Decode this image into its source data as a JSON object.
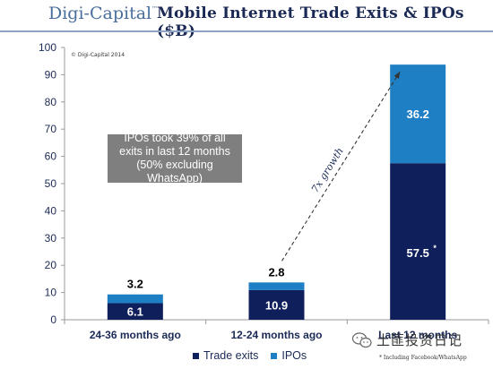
{
  "header": {
    "brand": "Digi-Capital",
    "brand_tm": "™",
    "title": "Mobile Internet Trade Exits & IPOs ($B)"
  },
  "copyright": "© Digi-Capital 2014",
  "note": "IPOs took 39% of all exits in last 12 months (50% excluding WhatsApp)",
  "growth_label": "7x growth",
  "footnote": "* Including Facebook/WhatsApp",
  "watermark": "土匪投资日记",
  "chart_data": {
    "type": "bar",
    "stacked": true,
    "categories": [
      "24-36 months ago",
      "12-24 months ago",
      "Last 12 months"
    ],
    "series": [
      {
        "name": "Trade exits",
        "values": [
          6.1,
          10.9,
          57.5
        ],
        "labels": [
          "6.1",
          "10.9",
          "57.5"
        ],
        "color": "#0e1f5b"
      },
      {
        "name": "IPOs",
        "values": [
          3.2,
          2.8,
          36.2
        ],
        "labels": [
          "3.2",
          "2.8",
          "36.2"
        ],
        "color": "#1f7fc4"
      }
    ],
    "starred_value": "*",
    "ylim": [
      0,
      100
    ],
    "yticks": [
      "0",
      "10",
      "20",
      "30",
      "40",
      "50",
      "60",
      "70",
      "80",
      "90",
      "100"
    ],
    "legend_position": "bottom",
    "grid": false
  }
}
